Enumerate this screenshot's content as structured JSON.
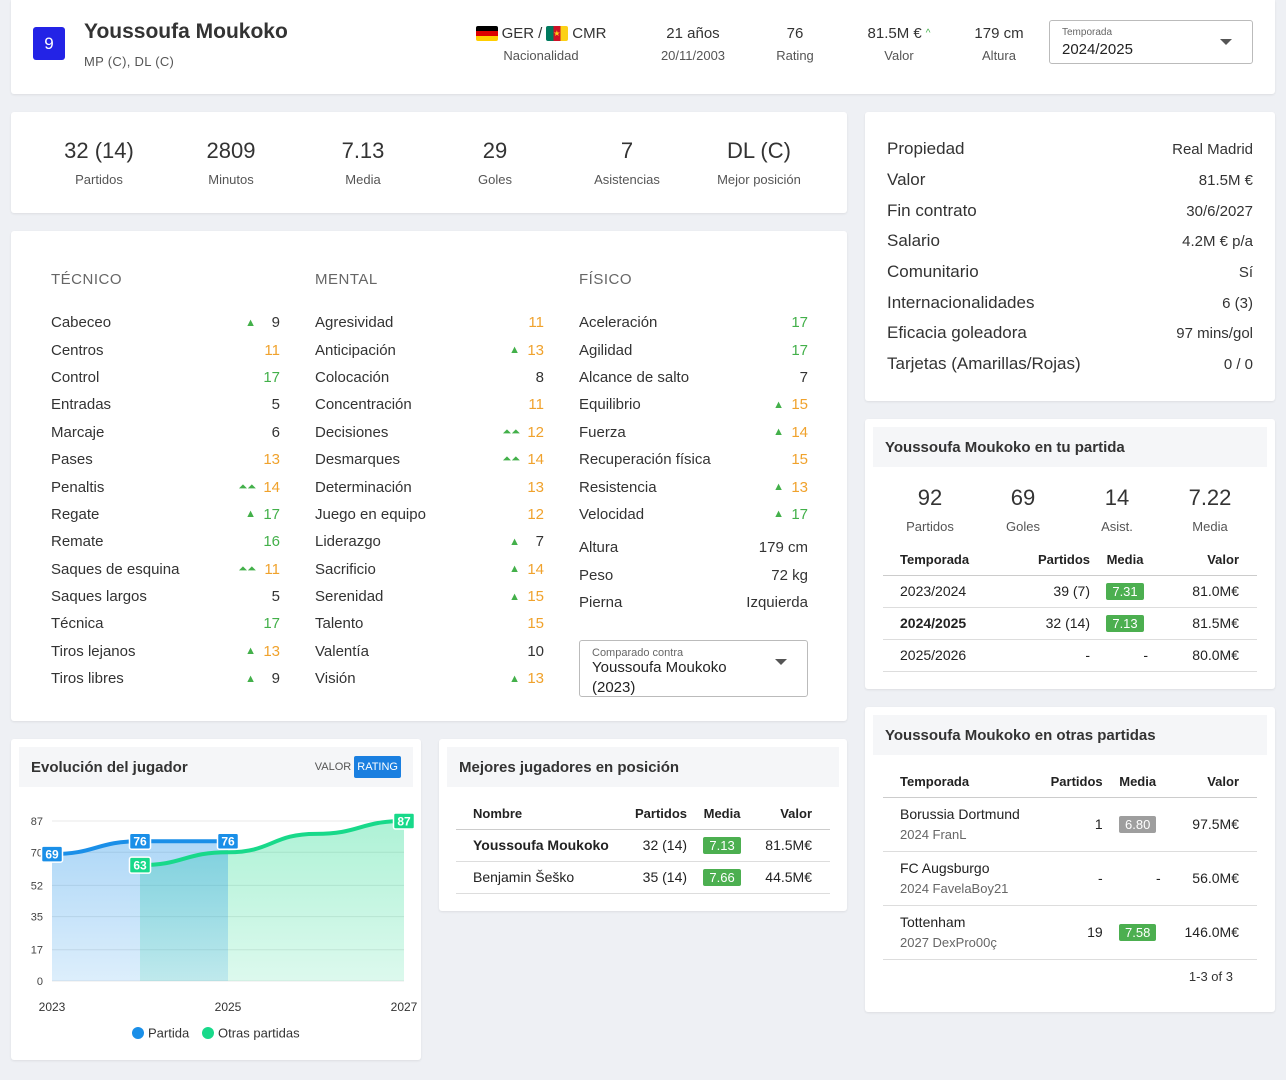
{
  "header": {
    "number": "9",
    "name": "Youssoufa Moukoko",
    "positions": "MP (C), DL (C)",
    "nationality": {
      "code1": "GER",
      "sep": "/",
      "code2": "CMR",
      "label": "Nacionalidad"
    },
    "age": {
      "value": "21 años",
      "label": "20/11/2003"
    },
    "rating": {
      "value": "76",
      "label": "Rating"
    },
    "value": {
      "value": "81.5M €",
      "label": "Valor",
      "trend_icon": "chevron-up-icon"
    },
    "height": {
      "value": "179 cm",
      "label": "Altura"
    },
    "season_select": {
      "label": "Temporada",
      "value": "2024/2025"
    }
  },
  "summary": [
    {
      "value": "32 (14)",
      "label": "Partidos"
    },
    {
      "value": "2809",
      "label": "Minutos"
    },
    {
      "value": "7.13",
      "label": "Media"
    },
    {
      "value": "29",
      "label": "Goles"
    },
    {
      "value": "7",
      "label": "Asistencias"
    },
    {
      "value": "DL (C)",
      "label": "Mejor posición"
    }
  ],
  "attributes": {
    "tecnico": {
      "title": "TÉCNICO",
      "items": [
        {
          "name": "Cabeceo",
          "value": "9",
          "arrow": "▲",
          "color": "dark"
        },
        {
          "name": "Centros",
          "value": "11",
          "arrow": "",
          "color": "orange"
        },
        {
          "name": "Control",
          "value": "17",
          "arrow": "",
          "color": "green"
        },
        {
          "name": "Entradas",
          "value": "5",
          "arrow": "",
          "color": "dark"
        },
        {
          "name": "Marcaje",
          "value": "6",
          "arrow": "",
          "color": "dark"
        },
        {
          "name": "Pases",
          "value": "13",
          "arrow": "",
          "color": "orange"
        },
        {
          "name": "Penaltis",
          "value": "14",
          "arrow": "⏶⏶",
          "color": "orange"
        },
        {
          "name": "Regate",
          "value": "17",
          "arrow": "▲",
          "color": "green"
        },
        {
          "name": "Remate",
          "value": "16",
          "arrow": "",
          "color": "green"
        },
        {
          "name": "Saques de esquina",
          "value": "11",
          "arrow": "⏶⏶",
          "color": "orange"
        },
        {
          "name": "Saques largos",
          "value": "5",
          "arrow": "",
          "color": "dark"
        },
        {
          "name": "Técnica",
          "value": "17",
          "arrow": "",
          "color": "green"
        },
        {
          "name": "Tiros lejanos",
          "value": "13",
          "arrow": "▲",
          "color": "orange"
        },
        {
          "name": "Tiros libres",
          "value": "9",
          "arrow": "▲",
          "color": "dark"
        }
      ]
    },
    "mental": {
      "title": "MENTAL",
      "items": [
        {
          "name": "Agresividad",
          "value": "11",
          "arrow": "",
          "color": "orange"
        },
        {
          "name": "Anticipación",
          "value": "13",
          "arrow": "▲",
          "color": "orange"
        },
        {
          "name": "Colocación",
          "value": "8",
          "arrow": "",
          "color": "dark"
        },
        {
          "name": "Concentración",
          "value": "11",
          "arrow": "",
          "color": "orange"
        },
        {
          "name": "Decisiones",
          "value": "12",
          "arrow": "⏶⏶",
          "color": "orange"
        },
        {
          "name": "Desmarques",
          "value": "14",
          "arrow": "⏶⏶",
          "color": "orange"
        },
        {
          "name": "Determinación",
          "value": "13",
          "arrow": "",
          "color": "orange"
        },
        {
          "name": "Juego en equipo",
          "value": "12",
          "arrow": "",
          "color": "orange"
        },
        {
          "name": "Liderazgo",
          "value": "7",
          "arrow": "▲",
          "color": "dark"
        },
        {
          "name": "Sacrificio",
          "value": "14",
          "arrow": "▲",
          "color": "orange"
        },
        {
          "name": "Serenidad",
          "value": "15",
          "arrow": "▲",
          "color": "orange"
        },
        {
          "name": "Talento",
          "value": "15",
          "arrow": "",
          "color": "orange"
        },
        {
          "name": "Valentía",
          "value": "10",
          "arrow": "",
          "color": "dark"
        },
        {
          "name": "Visión",
          "value": "13",
          "arrow": "▲",
          "color": "orange"
        }
      ]
    },
    "fisico": {
      "title": "FÍSICO",
      "items": [
        {
          "name": "Aceleración",
          "value": "17",
          "arrow": "",
          "color": "green"
        },
        {
          "name": "Agilidad",
          "value": "17",
          "arrow": "",
          "color": "green"
        },
        {
          "name": "Alcance de salto",
          "value": "7",
          "arrow": "",
          "color": "dark"
        },
        {
          "name": "Equilibrio",
          "value": "15",
          "arrow": "▲",
          "color": "orange"
        },
        {
          "name": "Fuerza",
          "value": "14",
          "arrow": "▲",
          "color": "orange"
        },
        {
          "name": "Recuperación física",
          "value": "15",
          "arrow": "",
          "color": "orange"
        },
        {
          "name": "Resistencia",
          "value": "13",
          "arrow": "▲",
          "color": "orange"
        },
        {
          "name": "Velocidad",
          "value": "17",
          "arrow": "▲",
          "color": "green"
        }
      ]
    },
    "extras": [
      {
        "name": "Altura",
        "value": "179 cm"
      },
      {
        "name": "Peso",
        "value": "72 kg"
      },
      {
        "name": "Pierna",
        "value": "Izquierda"
      }
    ],
    "compare_select": {
      "label": "Comparado contra",
      "value": "Youssoufa Moukoko (2023)"
    }
  },
  "contract": [
    {
      "key": "Propiedad",
      "value": "Real Madrid"
    },
    {
      "key": "Valor",
      "value": "81.5M €"
    },
    {
      "key": "Fin contrato",
      "value": "30/6/2027"
    },
    {
      "key": "Salario",
      "value": "4.2M € p/a"
    },
    {
      "key": "Comunitario",
      "value": "Sí"
    },
    {
      "key": "Internacionalidades",
      "value": "6 (3)"
    },
    {
      "key": "Eficacia goleadora",
      "value": "97 mins/gol"
    },
    {
      "key": "Tarjetas (Amarillas/Rojas)",
      "value": "0 / 0"
    }
  ],
  "your_game": {
    "title": "Youssoufa Moukoko en tu partida",
    "stats": [
      {
        "value": "92",
        "label": "Partidos"
      },
      {
        "value": "69",
        "label": "Goles"
      },
      {
        "value": "14",
        "label": "Asist."
      },
      {
        "value": "7.22",
        "label": "Media"
      }
    ],
    "columns": [
      "Temporada",
      "Partidos",
      "Media",
      "Valor"
    ],
    "rows": [
      {
        "season": "2023/2024",
        "matches": "39 (7)",
        "rating": "7.31",
        "value": "81.0M€",
        "bold": false
      },
      {
        "season": "2024/2025",
        "matches": "32 (14)",
        "rating": "7.13",
        "value": "81.5M€",
        "bold": true
      },
      {
        "season": "2025/2026",
        "matches": "-",
        "rating": "-",
        "value": "80.0M€",
        "bold": false
      }
    ]
  },
  "other_games": {
    "title": "Youssoufa Moukoko en otras partidas",
    "columns": [
      "Temporada",
      "Partidos",
      "Media",
      "Valor"
    ],
    "rows": [
      {
        "club": "Borussia Dortmund",
        "sub": "2024 FranL",
        "matches": "1",
        "rating": "6.80",
        "badge": "gray",
        "value": "97.5M€"
      },
      {
        "club": "FC Augsburgo",
        "sub": "2024 FavelaBoy21",
        "matches": "-",
        "rating": "-",
        "badge": "",
        "value": "56.0M€"
      },
      {
        "club": "Tottenham",
        "sub": "2027 DexPro00ç",
        "matches": "19",
        "rating": "7.58",
        "badge": "green",
        "value": "146.0M€"
      }
    ],
    "pagination": "1-3 of 3"
  },
  "evolution": {
    "title": "Evolución del jugador",
    "toggle": [
      "VALOR",
      "RATING"
    ],
    "active_toggle": "RATING"
  },
  "chart_data": {
    "type": "area",
    "title": "",
    "xlabel": "",
    "ylabel": "",
    "x_ticks": [
      "2023",
      "2025",
      "2027"
    ],
    "x_range": [
      2023,
      2027
    ],
    "y_ticks": [
      "0",
      "17",
      "35",
      "52",
      "70",
      "87"
    ],
    "ylim": [
      0,
      87
    ],
    "legend_position": "bottom",
    "series": [
      {
        "name": "Partida",
        "color": "#1a8fe8",
        "points": [
          [
            2023,
            69
          ],
          [
            2024,
            76
          ],
          [
            2025,
            76
          ]
        ],
        "labels": [
          "69",
          "76",
          "76"
        ]
      },
      {
        "name": "Otras partidas",
        "color": "#18d98a",
        "points": [
          [
            2024,
            63
          ],
          [
            2025,
            70
          ],
          [
            2026,
            80
          ],
          [
            2027,
            87
          ]
        ],
        "labels": [
          "63",
          "",
          "",
          "87"
        ]
      }
    ]
  },
  "best_players": {
    "title": "Mejores jugadores en posición",
    "columns": [
      "Nombre",
      "Partidos",
      "Media",
      "Valor"
    ],
    "rows": [
      {
        "name": "Youssoufa Moukoko",
        "matches": "32 (14)",
        "rating": "7.13",
        "value": "81.5M€",
        "bold": true
      },
      {
        "name": "Benjamin Šeško",
        "matches": "35 (14)",
        "rating": "7.66",
        "value": "44.5M€",
        "bold": false
      }
    ]
  }
}
